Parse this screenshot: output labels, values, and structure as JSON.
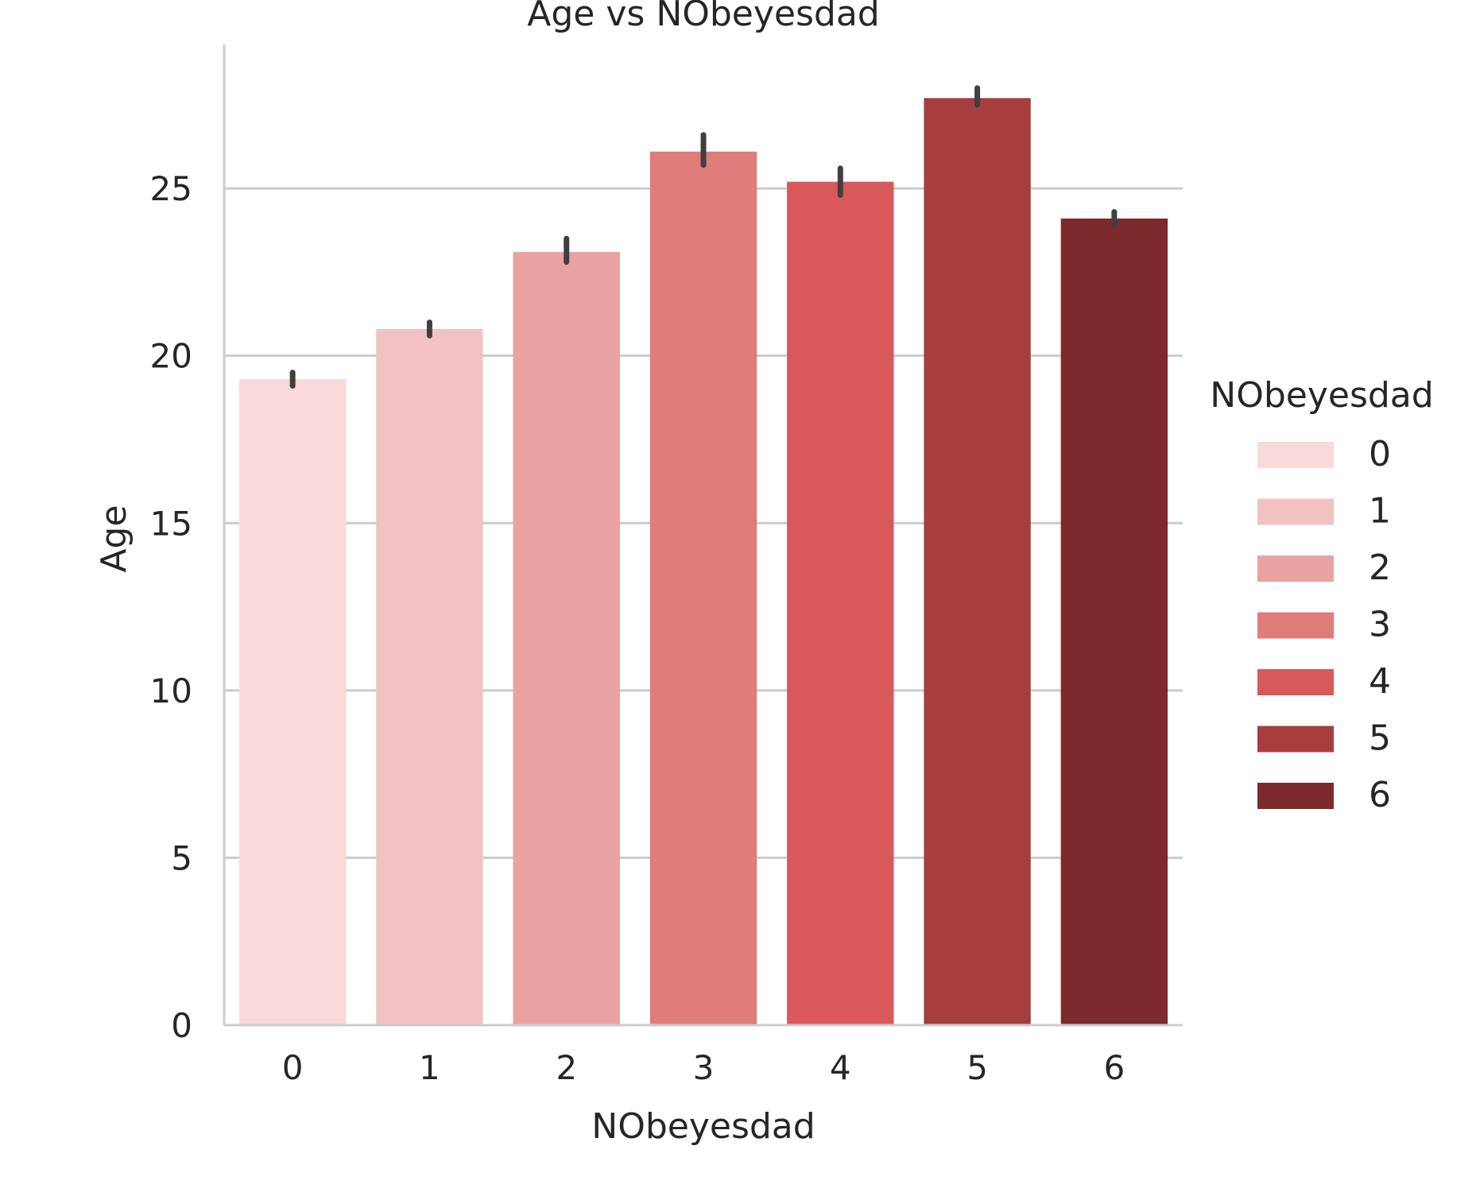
{
  "chart_data": {
    "type": "bar",
    "title": "Age vs NObeyesdad",
    "xlabel": "NObeyesdad",
    "ylabel": "Age",
    "categories": [
      "0",
      "1",
      "2",
      "3",
      "4",
      "5",
      "6"
    ],
    "values": [
      19.3,
      20.8,
      23.1,
      26.1,
      25.2,
      27.7,
      24.1
    ],
    "error_low": [
      19.1,
      20.6,
      22.8,
      25.7,
      24.8,
      27.5,
      23.9
    ],
    "error_high": [
      19.5,
      21.0,
      23.5,
      26.6,
      25.6,
      28.0,
      24.3
    ],
    "yticks": [
      0,
      5,
      10,
      15,
      20,
      25
    ],
    "ylim": [
      0,
      29.3
    ],
    "grid": "horizontal",
    "legend": {
      "title": "NObeyesdad",
      "placement": "right",
      "entries": [
        "0",
        "1",
        "2",
        "3",
        "4",
        "5",
        "6"
      ]
    },
    "colors": [
      "#f9d9da",
      "#f2c2c2",
      "#eaa2a1",
      "#e07c7a",
      "#d9595a",
      "#a63e3f",
      "#7c2a2b"
    ],
    "error_bar_color": "#3f3f3f",
    "axis_color": "#cccccc",
    "grid_color": "#cccccc"
  }
}
